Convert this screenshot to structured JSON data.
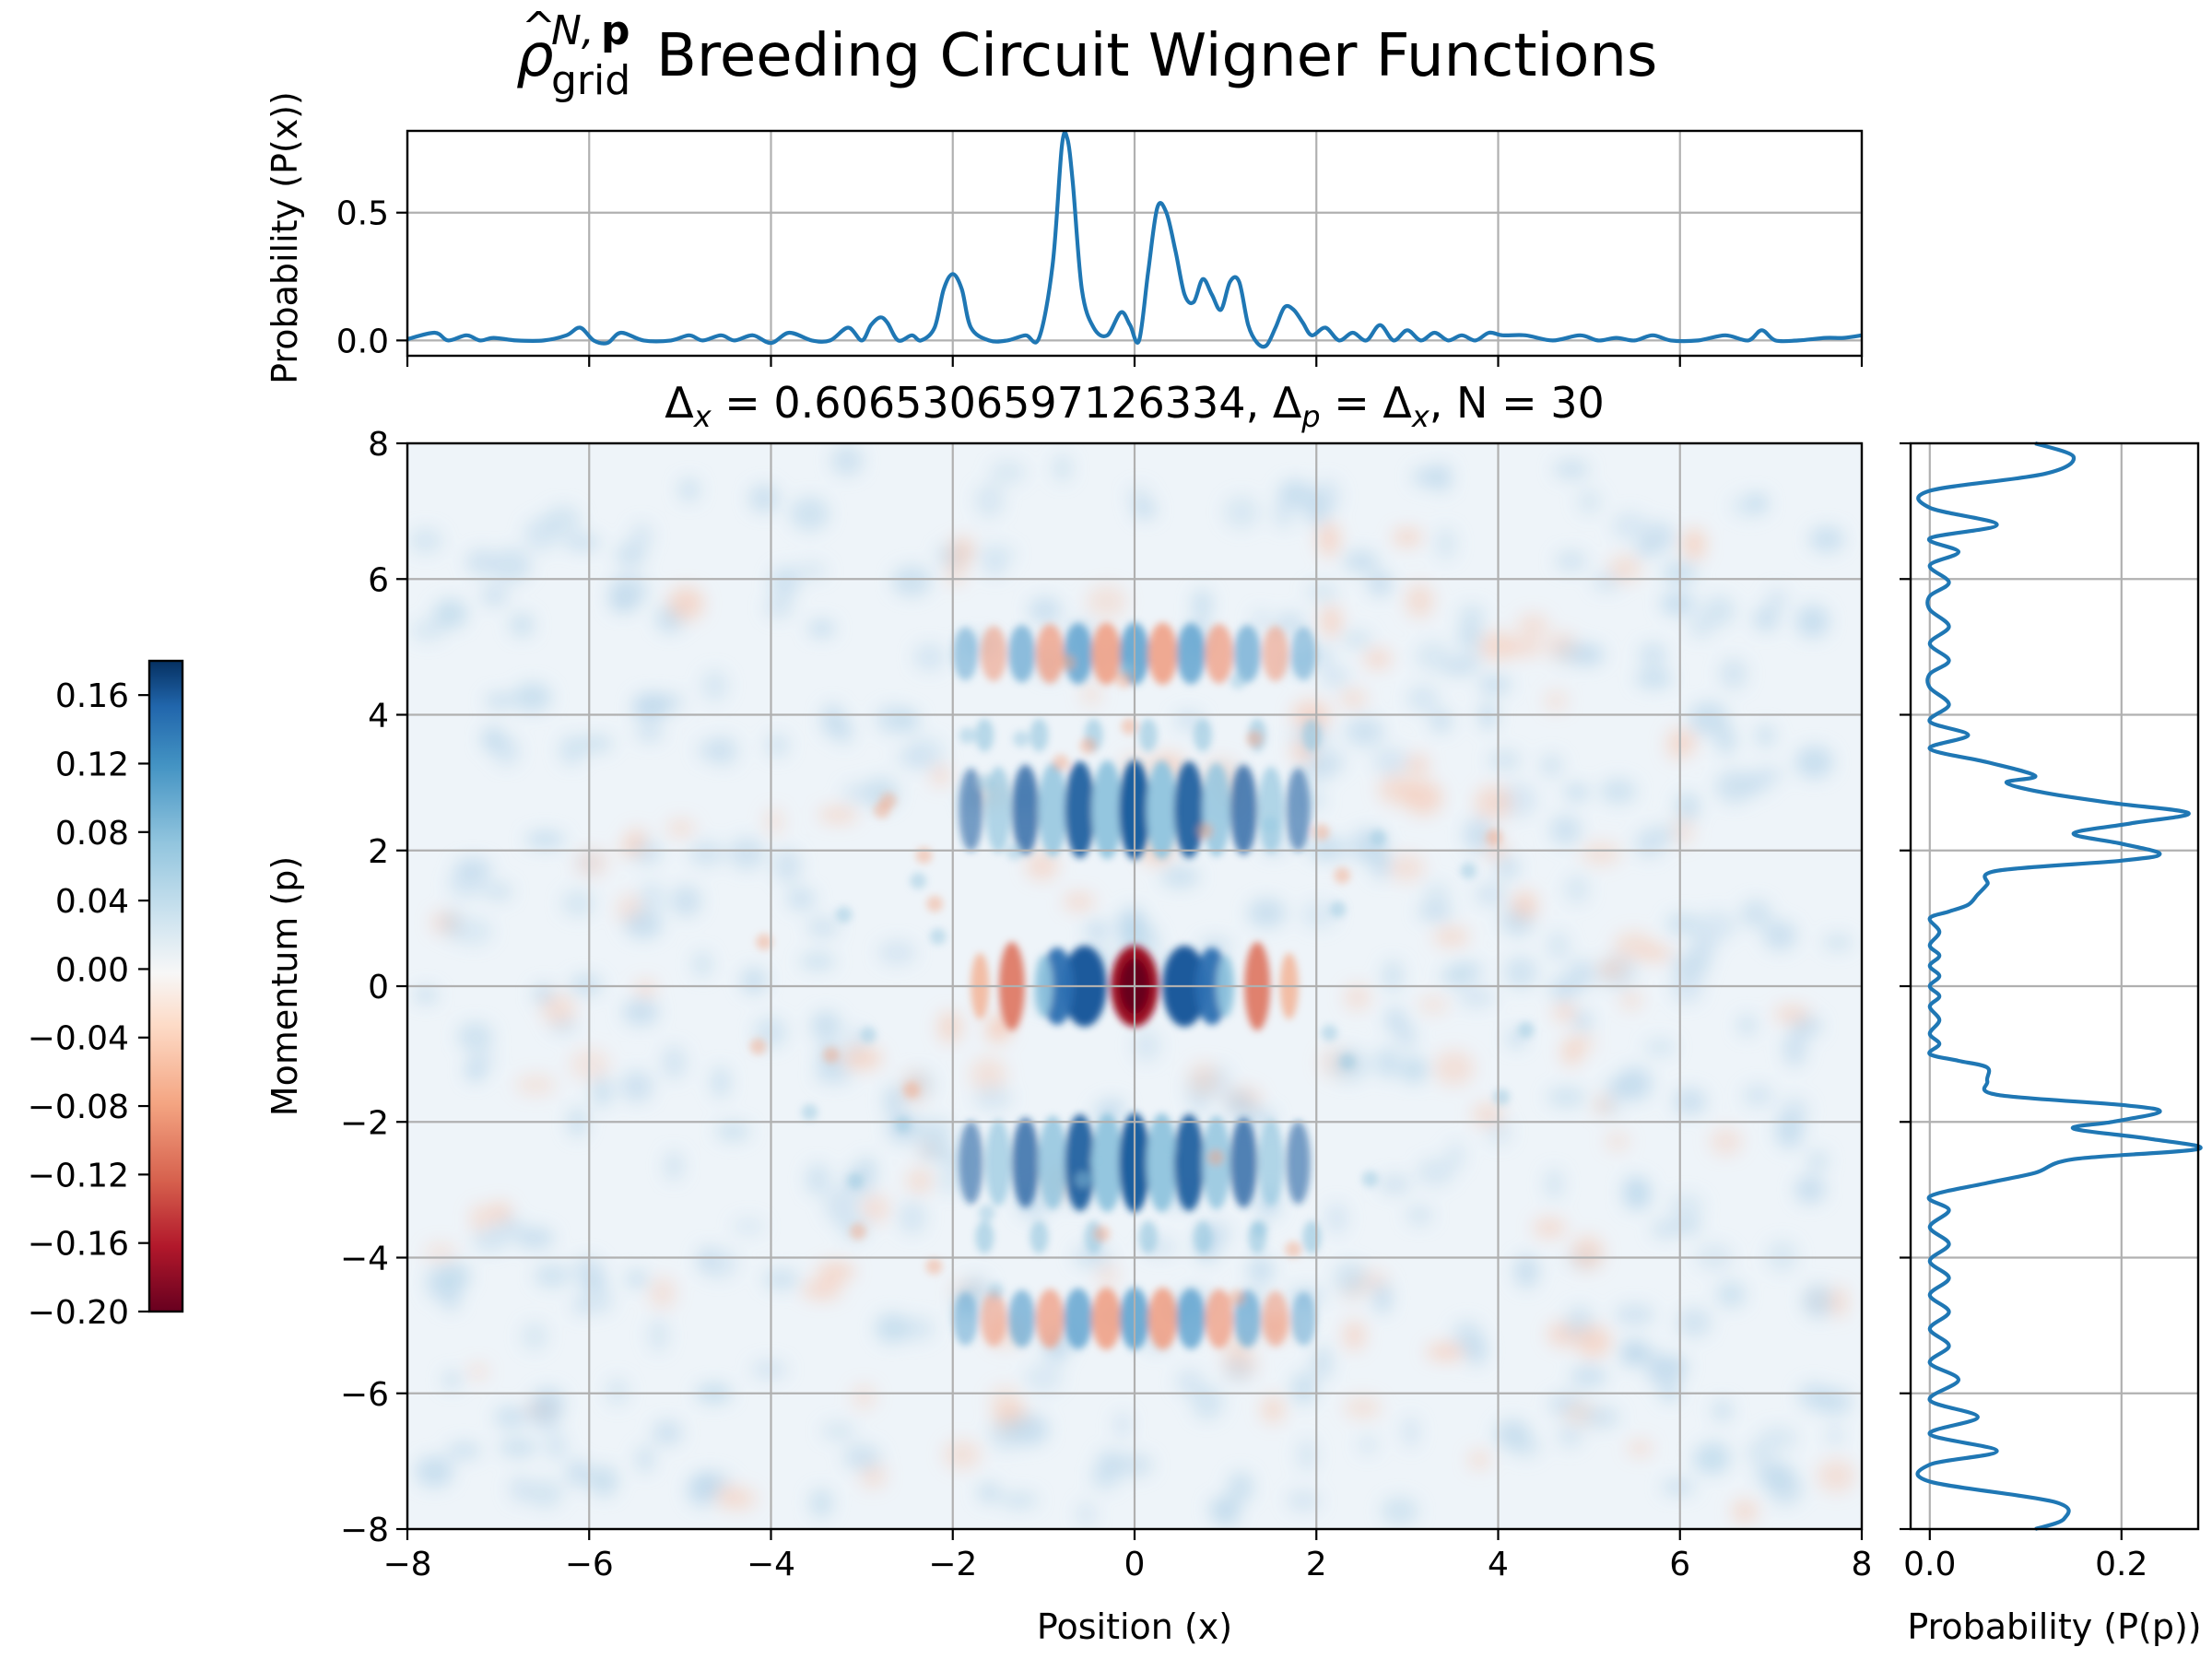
{
  "title": {
    "rho_symbol": "ρ",
    "hat": "^",
    "superscript": "N,",
    "superscript_bold": "p",
    "subscript": "grid",
    "text": "Breeding Circuit Wigner Functions"
  },
  "main_plot": {
    "subtitle_parts": {
      "dx_symbol": "Δ",
      "dx_sub": "x",
      "eq_value": " = 0.6065306597126334, ",
      "dp_symbol": "Δ",
      "dp_sub": "p",
      "eq2": " = ",
      "dx2_symbol": "Δ",
      "dx2_sub": "x",
      "tail": ", N = 30"
    },
    "xlabel": "Position (x)",
    "ylabel": "Momentum (p)"
  },
  "chart_data": [
    {
      "type": "line",
      "panel": "top-marginal",
      "ylabel": "Probability (P(x))",
      "xlim": [
        -8,
        8
      ],
      "ylim": [
        -0.06,
        0.82
      ],
      "yticks": [
        0.0,
        0.5
      ],
      "ytick_labels": [
        "0.0",
        "0.5"
      ],
      "xticks": [
        -8,
        -6,
        -4,
        -2,
        0,
        2,
        4,
        6,
        8
      ],
      "grid": true,
      "color": "#1f77b4",
      "x": [
        -8.0,
        -7.7,
        -7.55,
        -7.35,
        -7.2,
        -7.05,
        -6.8,
        -6.5,
        -6.25,
        -6.1,
        -5.95,
        -5.8,
        -5.65,
        -5.4,
        -5.1,
        -4.9,
        -4.75,
        -4.55,
        -4.4,
        -4.2,
        -4.0,
        -3.8,
        -3.55,
        -3.35,
        -3.15,
        -3.0,
        -2.9,
        -2.8,
        -2.72,
        -2.6,
        -2.45,
        -2.35,
        -2.2,
        -2.1,
        -2.0,
        -1.9,
        -1.8,
        -1.6,
        -1.4,
        -1.2,
        -1.05,
        -0.9,
        -0.8,
        -0.74,
        -0.68,
        -0.58,
        -0.45,
        -0.3,
        -0.15,
        -0.05,
        0.05,
        0.15,
        0.25,
        0.35,
        0.45,
        0.55,
        0.65,
        0.75,
        0.85,
        0.95,
        1.05,
        1.15,
        1.25,
        1.35,
        1.45,
        1.55,
        1.65,
        1.75,
        1.85,
        1.95,
        2.1,
        2.25,
        2.4,
        2.55,
        2.7,
        2.85,
        3.0,
        3.15,
        3.3,
        3.45,
        3.6,
        3.75,
        3.9,
        4.05,
        4.3,
        4.6,
        4.9,
        5.1,
        5.3,
        5.5,
        5.7,
        5.9,
        6.2,
        6.5,
        6.75,
        6.9,
        7.05,
        7.3,
        7.6,
        7.8,
        8.0
      ],
      "y": [
        0.005,
        0.03,
        0.0,
        0.02,
        0.0,
        0.01,
        0.0,
        0.0,
        0.02,
        0.05,
        0.0,
        -0.01,
        0.03,
        0.0,
        0.0,
        0.02,
        0.0,
        0.02,
        0.0,
        0.02,
        -0.01,
        0.03,
        0.0,
        0.0,
        0.05,
        0.0,
        0.06,
        0.09,
        0.07,
        0.0,
        0.02,
        0.0,
        0.05,
        0.2,
        0.26,
        0.2,
        0.05,
        0.0,
        0.0,
        0.02,
        0.01,
        0.3,
        0.76,
        0.79,
        0.62,
        0.2,
        0.05,
        0.02,
        0.11,
        0.06,
        0.0,
        0.27,
        0.52,
        0.5,
        0.35,
        0.18,
        0.15,
        0.24,
        0.18,
        0.12,
        0.23,
        0.23,
        0.06,
        -0.01,
        -0.02,
        0.05,
        0.13,
        0.12,
        0.07,
        0.02,
        0.05,
        0.0,
        0.03,
        0.0,
        0.06,
        0.0,
        0.04,
        0.0,
        0.03,
        0.0,
        0.02,
        0.0,
        0.03,
        0.02,
        0.02,
        0.0,
        0.02,
        0.0,
        0.01,
        0.0,
        0.02,
        0.0,
        0.0,
        0.02,
        0.0,
        0.04,
        0.0,
        0.0,
        0.01,
        0.01,
        0.02
      ]
    },
    {
      "type": "line",
      "panel": "right-marginal",
      "orientation": "vertical",
      "xlabel": "Probability (P(p))",
      "xlim": [
        -0.02,
        0.28
      ],
      "xticks": [
        0.0,
        0.2
      ],
      "xtick_labels": [
        "0.0",
        "0.2"
      ],
      "ylim": [
        -8,
        8
      ],
      "grid": true,
      "color": "#1f77b4",
      "p": [
        8.0,
        7.8,
        7.55,
        7.3,
        7.05,
        6.8,
        6.6,
        6.4,
        6.2,
        5.95,
        5.75,
        5.55,
        5.3,
        5.05,
        4.8,
        4.6,
        4.4,
        4.15,
        3.9,
        3.7,
        3.5,
        3.3,
        3.1,
        3.0,
        2.85,
        2.7,
        2.55,
        2.4,
        2.25,
        2.1,
        1.95,
        1.85,
        1.7,
        1.5,
        1.35,
        1.2,
        1.1,
        1.0,
        0.8,
        0.6,
        0.45,
        0.3,
        0.15,
        0.0,
        -0.15,
        -0.3,
        -0.5,
        -0.7,
        -0.85,
        -1.0,
        -1.1,
        -1.2,
        -1.4,
        -1.6,
        -1.75,
        -1.85,
        -2.0,
        -2.1,
        -2.25,
        -2.4,
        -2.55,
        -2.75,
        -2.9,
        -3.1,
        -3.3,
        -3.55,
        -3.8,
        -4.05,
        -4.3,
        -4.55,
        -4.8,
        -5.05,
        -5.3,
        -5.55,
        -5.8,
        -6.1,
        -6.35,
        -6.6,
        -6.85,
        -7.05,
        -7.3,
        -7.6,
        -7.85,
        -8.0
      ],
      "prob": [
        0.11,
        0.15,
        0.12,
        0.0,
        0.0,
        0.07,
        0.0,
        0.03,
        0.0,
        0.02,
        0.0,
        0.0,
        0.02,
        0.0,
        0.02,
        0.0,
        0.0,
        0.02,
        0.0,
        0.04,
        0.0,
        0.06,
        0.11,
        0.08,
        0.12,
        0.19,
        0.27,
        0.21,
        0.15,
        0.2,
        0.24,
        0.2,
        0.07,
        0.06,
        0.05,
        0.04,
        0.02,
        0.0,
        0.01,
        0.0,
        0.01,
        0.0,
        0.01,
        0.0,
        0.01,
        0.0,
        0.01,
        0.0,
        0.01,
        0.0,
        0.03,
        0.06,
        0.06,
        0.07,
        0.2,
        0.24,
        0.19,
        0.15,
        0.23,
        0.28,
        0.15,
        0.11,
        0.06,
        0.0,
        0.02,
        0.0,
        0.02,
        0.0,
        0.02,
        0.0,
        0.02,
        0.0,
        0.02,
        0.0,
        0.03,
        0.0,
        0.05,
        0.0,
        0.07,
        0.0,
        0.0,
        0.13,
        0.14,
        0.11
      ]
    },
    {
      "type": "heatmap",
      "panel": "main-wigner",
      "xlabel": "Position (x)",
      "ylabel": "Momentum (p)",
      "xlim": [
        -8,
        8
      ],
      "ylim": [
        -8,
        8
      ],
      "xticks": [
        -8,
        -6,
        -4,
        -2,
        0,
        2,
        4,
        6,
        8
      ],
      "yticks": [
        -8,
        -6,
        -4,
        -2,
        0,
        2,
        4,
        6,
        8
      ],
      "grid": true,
      "colormap": "RdBu",
      "features": [
        {
          "kind": "blob",
          "x": 0.0,
          "p": 0.0,
          "value": -0.2
        },
        {
          "kind": "blob",
          "x": -0.6,
          "p": 0.0,
          "value": 0.17
        },
        {
          "kind": "blob",
          "x": 0.6,
          "p": 0.0,
          "value": 0.17
        },
        {
          "kind": "blob",
          "x": -0.85,
          "p": 0.0,
          "value": 0.12
        },
        {
          "kind": "blob",
          "x": 0.85,
          "p": 0.0,
          "value": 0.12
        },
        {
          "kind": "blob",
          "x": -1.3,
          "p": 0.0,
          "value": -0.1
        },
        {
          "kind": "blob",
          "x": 1.3,
          "p": 0.0,
          "value": -0.1
        },
        {
          "kind": "stripes",
          "p": 2.6,
          "value": 0.16
        },
        {
          "kind": "stripes",
          "p": -2.6,
          "value": 0.16
        },
        {
          "kind": "stripes",
          "p": 4.9,
          "value": 0.08
        },
        {
          "kind": "stripes",
          "p": -4.9,
          "value": 0.08
        }
      ]
    },
    {
      "type": "colorbar",
      "panel": "colorbar",
      "vmin": -0.2,
      "vmax": 0.18,
      "ticks": [
        0.16,
        0.12,
        0.08,
        0.04,
        0.0,
        -0.04,
        -0.08,
        -0.12,
        -0.16,
        -0.2
      ],
      "tick_labels": [
        "0.16",
        "0.12",
        "0.08",
        "0.04",
        "0.00",
        "−0.04",
        "−0.08",
        "−0.12",
        "−0.16",
        "−0.20"
      ],
      "colors": [
        "#67001f",
        "#b2182b",
        "#d6604d",
        "#f4a582",
        "#fddbc7",
        "#f7f7f7",
        "#d1e5f0",
        "#92c5de",
        "#4393c3",
        "#2166ac",
        "#053061"
      ]
    }
  ],
  "tick_labels": {
    "main_x": [
      "−8",
      "−6",
      "−4",
      "−2",
      "0",
      "2",
      "4",
      "6",
      "8"
    ],
    "main_y": [
      "8",
      "6",
      "4",
      "2",
      "0",
      "−2",
      "−4",
      "−6",
      "−8"
    ]
  }
}
